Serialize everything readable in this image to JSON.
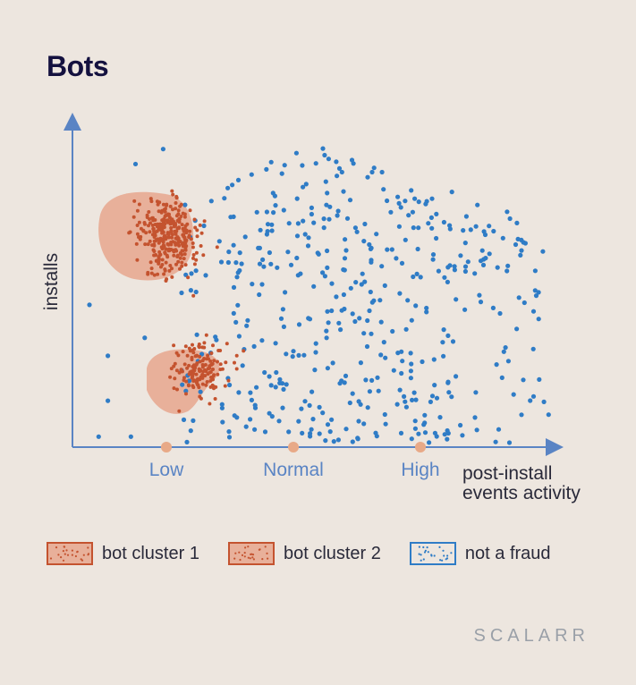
{
  "title": "Bots",
  "brand": "SCALARR",
  "colors": {
    "background": "#ede6df",
    "fraud_dot": "#c4532f",
    "fraud_fill": "#e8b09a",
    "legit_dot": "#2f7cc6",
    "axis": "#5a84c4",
    "tick_marker": "#e8a987",
    "title": "#14113f"
  },
  "chart_data": {
    "type": "scatter",
    "title": "Bots",
    "xlabel": "post-install events activity",
    "ylabel": "installs",
    "xticks": [
      "Low",
      "Normal",
      "High"
    ],
    "xlim": [
      0,
      1
    ],
    "ylim": [
      0,
      1
    ],
    "series": [
      {
        "name": "bot cluster 1",
        "region": {
          "center": [
            0.17,
            0.69
          ],
          "spread": [
            0.06,
            0.11
          ]
        }
      },
      {
        "name": "bot cluster 2",
        "region": {
          "center": [
            0.24,
            0.24
          ],
          "spread": [
            0.05,
            0.08
          ]
        }
      },
      {
        "name": "not a fraud",
        "region": {
          "x_range": [
            0.2,
            1.0
          ],
          "y_range": [
            0.0,
            1.0
          ]
        }
      }
    ]
  },
  "legend": [
    {
      "label": "bot cluster 1",
      "icon": "dotted-swatch-orange"
    },
    {
      "label": "bot cluster 2",
      "icon": "dotted-swatch-orange"
    },
    {
      "label": "not a fraud",
      "icon": "dotted-swatch-blue"
    }
  ]
}
